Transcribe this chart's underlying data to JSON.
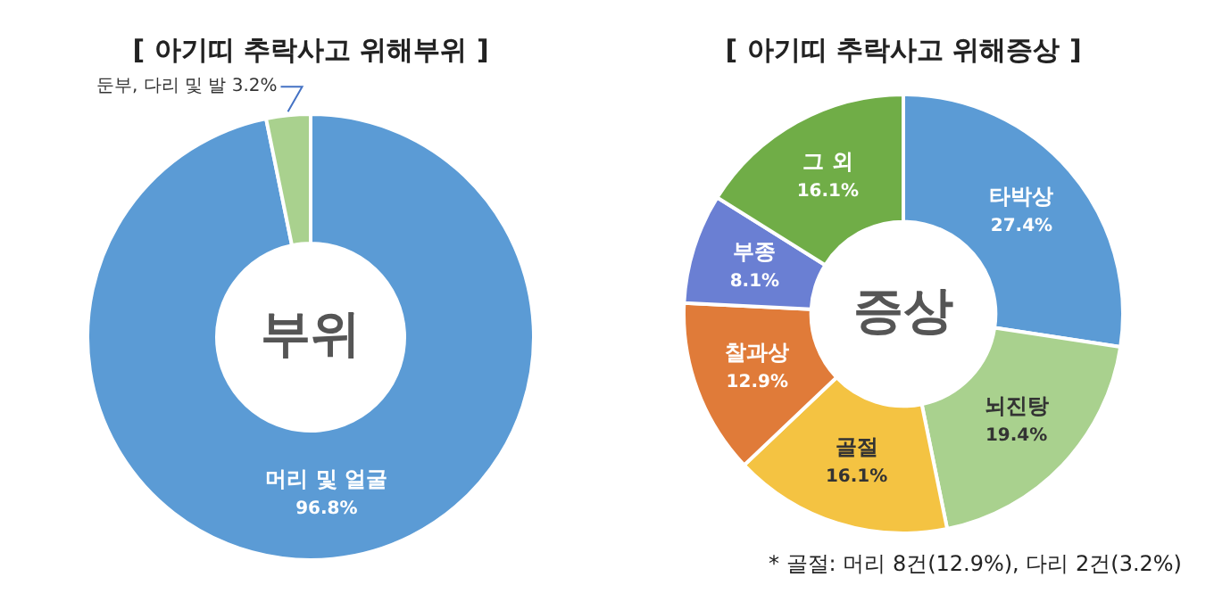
{
  "chart_data": [
    {
      "type": "donut",
      "title": "[ 아기띠 추락사고 위해부위 ]",
      "categories": [
        "머리 및 얼굴",
        "둔부, 다리 및 발"
      ],
      "values": [
        96.8,
        3.2
      ],
      "value_labels": [
        "96.8%",
        "3.2%"
      ],
      "colors": [
        "#5b9bd5",
        "#a9d18e"
      ],
      "annotations": [
        "부위"
      ],
      "legend": false
    },
    {
      "type": "donut",
      "title": "[ 아기띠 추락사고 위해증상 ]",
      "categories": [
        "타박상",
        "뇌진탕",
        "골절",
        "찰과상",
        "부종",
        "그 외"
      ],
      "values": [
        27.4,
        19.4,
        16.1,
        12.9,
        8.1,
        16.1
      ],
      "value_labels": [
        "27.4%",
        "19.4%",
        "16.1%",
        "12.9%",
        "8.1%",
        "16.1%"
      ],
      "colors": [
        "#5b9bd5",
        "#a9d18e",
        "#f4c342",
        "#e07b39",
        "#6a7fd3",
        "#70ad47"
      ],
      "annotations": [
        "증상",
        "* 골절: 머리 8건(12.9%), 다리 2건(3.2%)"
      ],
      "legend": false
    }
  ]
}
